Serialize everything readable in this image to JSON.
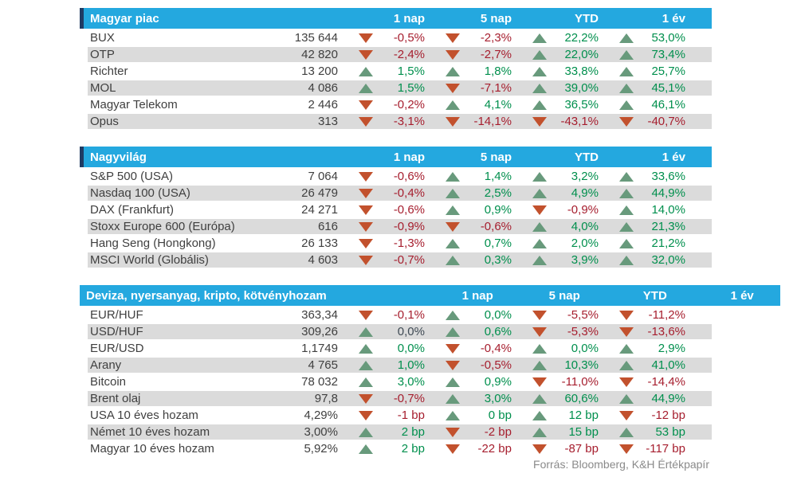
{
  "colors": {
    "cyan": "#24a8df",
    "navy": "#1f3b63",
    "stripe": "#dbdbdb",
    "up_text": "#008f4d",
    "down_text": "#a61e2e",
    "up_arrow": "#689a7c",
    "down_arrow": "#c2512d"
  },
  "report": {
    "columns": [
      "1 nap",
      "5 nap",
      "YTD",
      "1 év"
    ],
    "sections": [
      {
        "title": "Magyar piac",
        "rows": [
          {
            "name": "BUX",
            "value": "135 644",
            "changes": [
              {
                "dir": "down",
                "text": "-0,5%"
              },
              {
                "dir": "down",
                "text": "-2,3%"
              },
              {
                "dir": "up",
                "text": "22,2%"
              },
              {
                "dir": "up",
                "text": "53,0%"
              }
            ]
          },
          {
            "name": "OTP",
            "value": "42 820",
            "changes": [
              {
                "dir": "down",
                "text": "-2,4%"
              },
              {
                "dir": "down",
                "text": "-2,7%"
              },
              {
                "dir": "up",
                "text": "22,0%"
              },
              {
                "dir": "up",
                "text": "73,4%"
              }
            ]
          },
          {
            "name": "Richter",
            "value": "13 200",
            "changes": [
              {
                "dir": "up",
                "text": "1,5%"
              },
              {
                "dir": "up",
                "text": "1,8%"
              },
              {
                "dir": "up",
                "text": "33,8%"
              },
              {
                "dir": "up",
                "text": "25,7%"
              }
            ]
          },
          {
            "name": "MOL",
            "value": "4 086",
            "changes": [
              {
                "dir": "up",
                "text": "1,5%"
              },
              {
                "dir": "down",
                "text": "-7,1%"
              },
              {
                "dir": "up",
                "text": "39,0%"
              },
              {
                "dir": "up",
                "text": "45,1%"
              }
            ]
          },
          {
            "name": "Magyar Telekom",
            "value": "2 446",
            "changes": [
              {
                "dir": "down",
                "text": "-0,2%"
              },
              {
                "dir": "up",
                "text": "4,1%"
              },
              {
                "dir": "up",
                "text": "36,5%"
              },
              {
                "dir": "up",
                "text": "46,1%"
              }
            ]
          },
          {
            "name": "Opus",
            "value": "313",
            "changes": [
              {
                "dir": "down",
                "text": "-3,1%"
              },
              {
                "dir": "down",
                "text": "-14,1%"
              },
              {
                "dir": "down",
                "text": "-43,1%"
              },
              {
                "dir": "down",
                "text": "-40,7%"
              }
            ]
          }
        ]
      },
      {
        "title": "Nagyvilág",
        "rows": [
          {
            "name": "S&P 500 (USA)",
            "value": "7 064",
            "changes": [
              {
                "dir": "down",
                "text": "-0,6%"
              },
              {
                "dir": "up",
                "text": "1,4%"
              },
              {
                "dir": "up",
                "text": "3,2%"
              },
              {
                "dir": "up",
                "text": "33,6%"
              }
            ]
          },
          {
            "name": "Nasdaq 100 (USA)",
            "value": "26 479",
            "changes": [
              {
                "dir": "down",
                "text": "-0,4%"
              },
              {
                "dir": "up",
                "text": "2,5%"
              },
              {
                "dir": "up",
                "text": "4,9%"
              },
              {
                "dir": "up",
                "text": "44,9%"
              }
            ]
          },
          {
            "name": "DAX (Frankfurt)",
            "value": "24 271",
            "changes": [
              {
                "dir": "down",
                "text": "-0,6%"
              },
              {
                "dir": "up",
                "text": "0,9%"
              },
              {
                "dir": "down",
                "text": "-0,9%"
              },
              {
                "dir": "up",
                "text": "14,0%"
              }
            ]
          },
          {
            "name": "Stoxx Europe 600 (Európa)",
            "value": "616",
            "changes": [
              {
                "dir": "down",
                "text": "-0,9%"
              },
              {
                "dir": "down",
                "text": "-0,6%"
              },
              {
                "dir": "up",
                "text": "4,0%"
              },
              {
                "dir": "up",
                "text": "21,3%"
              }
            ]
          },
          {
            "name": "Hang Seng (Hongkong)",
            "value": "26 133",
            "changes": [
              {
                "dir": "down",
                "text": "-1,3%"
              },
              {
                "dir": "up",
                "text": "0,7%"
              },
              {
                "dir": "up",
                "text": "2,0%"
              },
              {
                "dir": "up",
                "text": "21,2%"
              }
            ]
          },
          {
            "name": "MSCI World (Globális)",
            "value": "4 603",
            "changes": [
              {
                "dir": "down",
                "text": "-0,7%"
              },
              {
                "dir": "up",
                "text": "0,3%"
              },
              {
                "dir": "up",
                "text": "3,9%"
              },
              {
                "dir": "up",
                "text": "32,0%"
              }
            ]
          }
        ]
      },
      {
        "title": "Deviza, nyersanyag, kripto, kötvényhozam",
        "rows": [
          {
            "name": "EUR/HUF",
            "value": "363,34",
            "changes": [
              {
                "dir": "down",
                "text": "-0,1%"
              },
              {
                "dir": "up",
                "text": "0,0%"
              },
              {
                "dir": "down",
                "text": "-5,5%"
              },
              {
                "dir": "down",
                "text": "-11,2%"
              }
            ]
          },
          {
            "name": "USD/HUF",
            "value": "309,26",
            "changes": [
              {
                "dir": "up",
                "text": "0,0%",
                "tone": "neutral"
              },
              {
                "dir": "up",
                "text": "0,6%"
              },
              {
                "dir": "down",
                "text": "-5,3%"
              },
              {
                "dir": "down",
                "text": "-13,6%"
              }
            ]
          },
          {
            "name": "EUR/USD",
            "value": "1,1749",
            "changes": [
              {
                "dir": "up",
                "text": "0,0%"
              },
              {
                "dir": "down",
                "text": "-0,4%"
              },
              {
                "dir": "up",
                "text": "0,0%"
              },
              {
                "dir": "up",
                "text": "2,9%"
              }
            ]
          },
          {
            "name": "Arany",
            "value": "4 765",
            "changes": [
              {
                "dir": "up",
                "text": "1,0%"
              },
              {
                "dir": "down",
                "text": "-0,5%"
              },
              {
                "dir": "up",
                "text": "10,3%"
              },
              {
                "dir": "up",
                "text": "41,0%"
              }
            ]
          },
          {
            "name": "Bitcoin",
            "value": "78 032",
            "changes": [
              {
                "dir": "up",
                "text": "3,0%"
              },
              {
                "dir": "up",
                "text": "0,9%"
              },
              {
                "dir": "down",
                "text": "-11,0%"
              },
              {
                "dir": "down",
                "text": "-14,4%"
              }
            ]
          },
          {
            "name": "Brent olaj",
            "value": "97,8",
            "changes": [
              {
                "dir": "down",
                "text": "-0,7%"
              },
              {
                "dir": "up",
                "text": "3,0%"
              },
              {
                "dir": "up",
                "text": "60,6%"
              },
              {
                "dir": "up",
                "text": "44,9%"
              }
            ]
          },
          {
            "name": "USA 10 éves hozam",
            "value": "4,29%",
            "changes": [
              {
                "dir": "down",
                "text": "-1 bp"
              },
              {
                "dir": "up",
                "text": "0 bp"
              },
              {
                "dir": "up",
                "text": "12 bp"
              },
              {
                "dir": "down",
                "text": "-12 bp"
              }
            ]
          },
          {
            "name": "Német 10 éves hozam",
            "value": "3,00%",
            "changes": [
              {
                "dir": "up",
                "text": "2 bp"
              },
              {
                "dir": "down",
                "text": "-2 bp"
              },
              {
                "dir": "up",
                "text": "15 bp"
              },
              {
                "dir": "up",
                "text": "53 bp"
              }
            ]
          },
          {
            "name": "Magyar 10 éves hozam",
            "value": "5,92%",
            "changes": [
              {
                "dir": "up",
                "text": "2 bp"
              },
              {
                "dir": "down",
                "text": "-22 bp"
              },
              {
                "dir": "down",
                "text": "-87 bp"
              },
              {
                "dir": "down",
                "text": "-117 bp"
              }
            ]
          }
        ]
      }
    ],
    "footer": "Forrás: Bloomberg, K&H Értékpapír"
  }
}
